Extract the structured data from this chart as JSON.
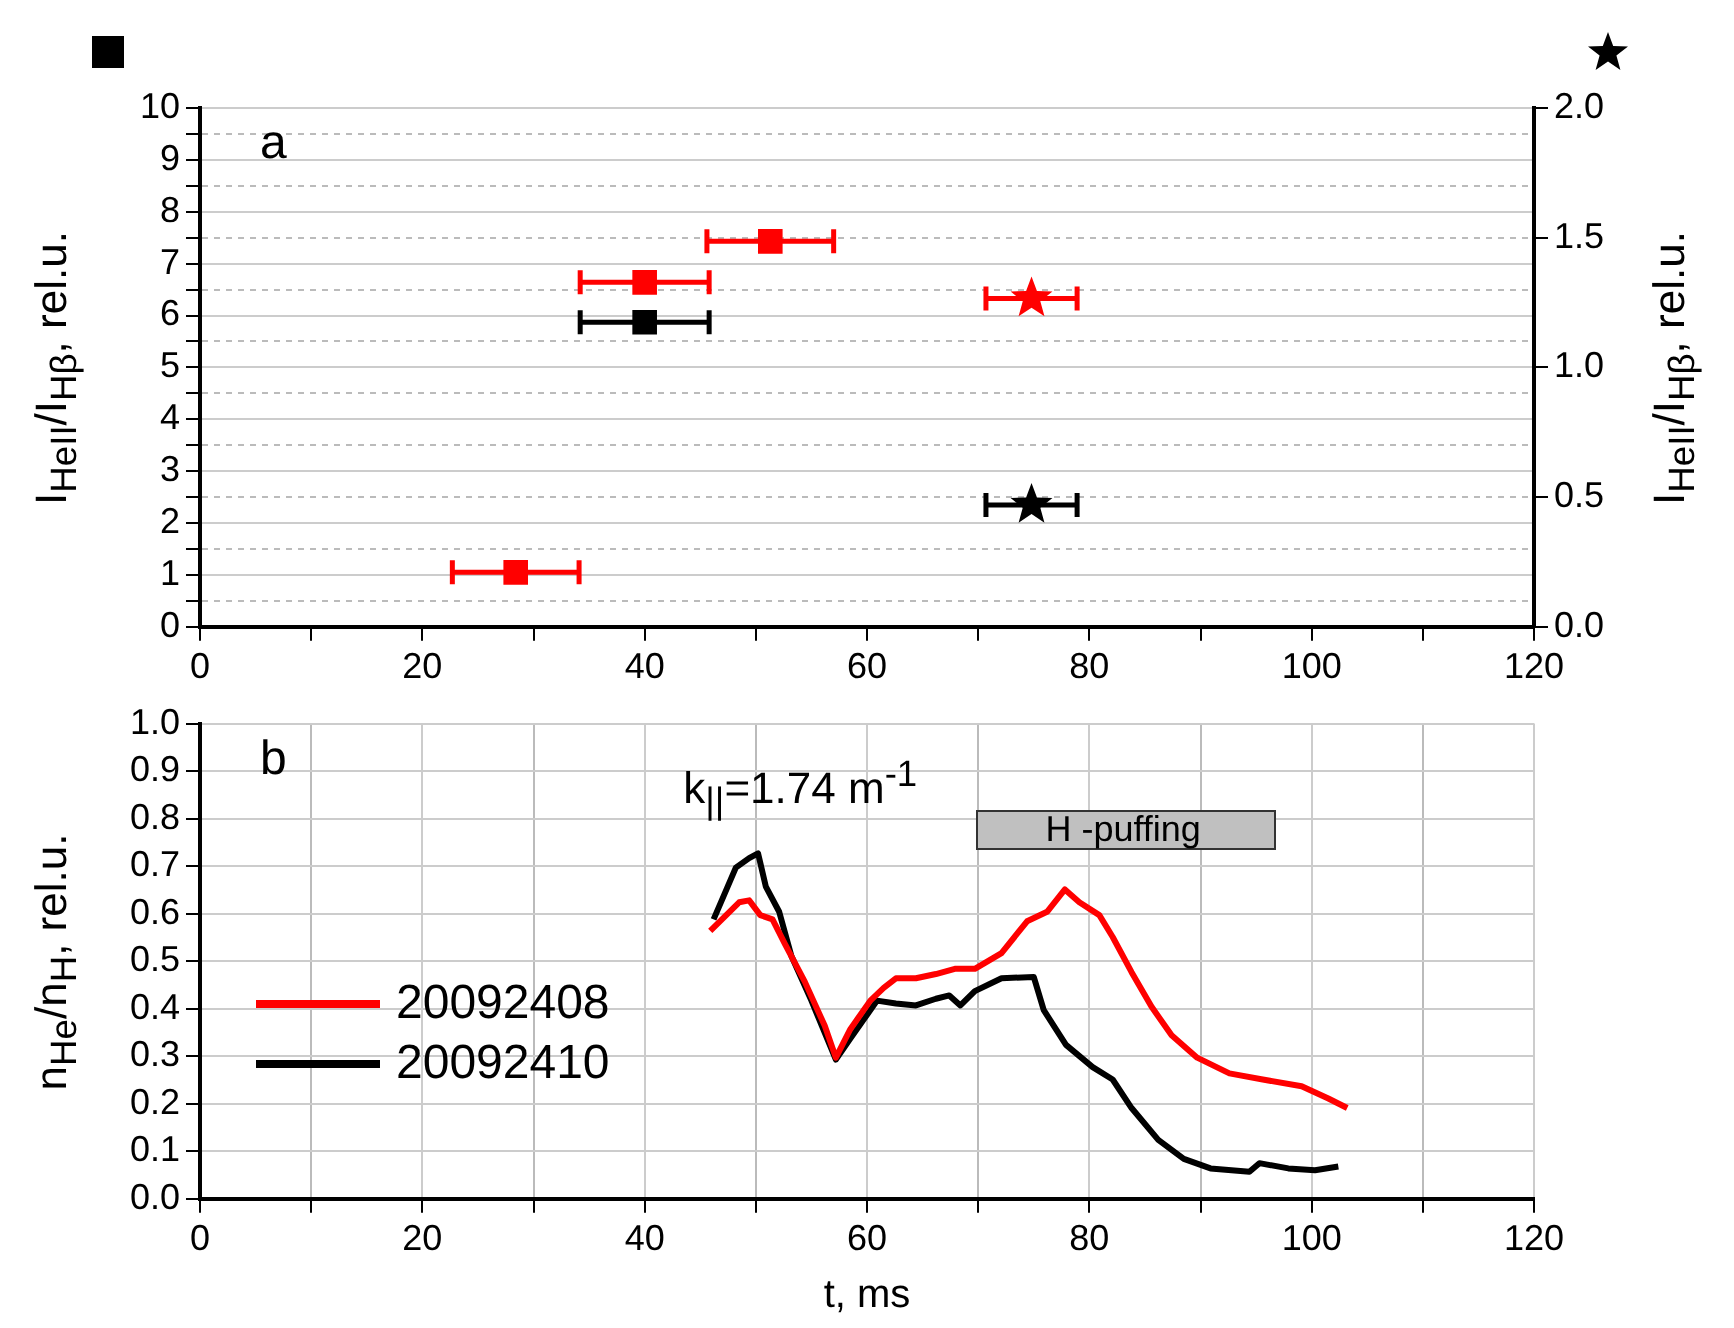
{
  "chart_data": [
    {
      "type": "scatter",
      "ylabel": "I$_{HeII}$/I$_{Hβ}$, rel.u.",
      "y2label": "I$_{HeII}$/I$_{Hβ}$, rel.u.",
      "annotations": [
        "a"
      ],
      "xlim": [
        0,
        120
      ],
      "xticks": [
        0,
        {
          "value": 10,
          "label": null
        },
        20,
        {
          "value": 30,
          "label": null
        },
        40,
        {
          "value": 50,
          "label": null
        },
        60,
        {
          "value": 70,
          "label": null
        },
        80,
        {
          "value": 90,
          "label": null
        },
        100,
        {
          "value": 110,
          "label": null
        },
        120
      ],
      "ylim": [
        0,
        10
      ],
      "yticks": [
        0,
        {
          "value": 0.5,
          "label": null
        },
        1,
        {
          "value": 1.5,
          "label": null
        },
        2,
        {
          "value": 2.5,
          "label": null
        },
        3,
        {
          "value": 3.5,
          "label": null
        },
        4,
        {
          "value": 4.5,
          "label": null
        },
        5,
        {
          "value": 5.5,
          "label": null
        },
        6,
        {
          "value": 6.5,
          "label": null
        },
        7,
        {
          "value": 7.5,
          "label": null
        },
        8,
        {
          "value": 8.5,
          "label": null
        },
        9,
        {
          "value": 9.5,
          "label": null
        },
        10
      ],
      "y2lim": [
        0,
        2
      ],
      "y2ticks": [
        {
          "value": 0,
          "label": "0.0"
        },
        {
          "value": 0.5,
          "label": "0.5"
        },
        {
          "value": 1,
          "label": "1.0"
        },
        {
          "value": 1.5,
          "label": "1.5"
        },
        {
          "value": 2,
          "label": "2.0"
        }
      ],
      "grid": "y",
      "series": [
        {
          "color": "#ff0000",
          "marker": "square",
          "x": [
            28.4,
            40,
            51.3
          ],
          "values": [
            1.05,
            6.64,
            7.43
          ],
          "xerrors": [
            5.7,
            5.8,
            5.7
          ]
        },
        {
          "color": "#000000",
          "marker": "square",
          "x": [
            40
          ],
          "values": [
            5.87
          ],
          "xerrors": [
            5.8
          ]
        },
        {
          "color": "#ff0000",
          "marker": "star",
          "axis": "y2",
          "x": [
            74.8
          ],
          "values": [
            1.266
          ],
          "xerrors": [
            4.1
          ]
        },
        {
          "color": "#000000",
          "marker": "star",
          "axis": "y2",
          "x": [
            74.8
          ],
          "values": [
            0.47
          ],
          "xerrors": [
            4.1
          ]
        }
      ]
    },
    {
      "type": "line",
      "xlabel": "t, ms",
      "ylabel": "n$_{He}$/n$_{H}$, rel.u.",
      "annotations": [
        "b",
        "k$_{||}$=1.74 m$^{-1}$",
        "H -puffing"
      ],
      "xlim": [
        0,
        120
      ],
      "xticks": [
        0,
        {
          "value": 10,
          "label": null
        },
        20,
        {
          "value": 30,
          "label": null
        },
        40,
        {
          "value": 50,
          "label": null
        },
        60,
        {
          "value": 70,
          "label": null
        },
        80,
        {
          "value": 90,
          "label": null
        },
        100,
        {
          "value": 110,
          "label": null
        },
        120
      ],
      "ylim": [
        0,
        1
      ],
      "yticks": [
        {
          "value": 0,
          "label": "0.0"
        },
        {
          "value": 0.1,
          "label": "0.1"
        },
        {
          "value": 0.2,
          "label": "0.2"
        },
        {
          "value": 0.3,
          "label": "0.3"
        },
        {
          "value": 0.4,
          "label": "0.4"
        },
        {
          "value": 0.5,
          "label": "0.5"
        },
        {
          "value": 0.6,
          "label": "0.6"
        },
        {
          "value": 0.7,
          "label": "0.7"
        },
        {
          "value": 0.8,
          "label": "0.8"
        },
        {
          "value": 0.9,
          "label": "0.9"
        },
        {
          "value": 1,
          "label": "1.0"
        }
      ],
      "grid": true,
      "legend": "bottom left",
      "series": [
        {
          "name": "20092408",
          "color": "#ff0000",
          "x": [
            45.9,
            48.5,
            49.4,
            50.4,
            51.5,
            52.6,
            54.4,
            56.2,
            57.2,
            58.5,
            60.3,
            61.5,
            62.6,
            64.4,
            66.2,
            67.9,
            69.7,
            72.1,
            74.4,
            76.2,
            77.8,
            79.1,
            80.9,
            82.1,
            83.8,
            85.6,
            87.4,
            89.7,
            92.6,
            95.6,
            99.1,
            101.5,
            103.2
          ],
          "values": [
            0.564,
            0.624,
            0.628,
            0.597,
            0.588,
            0.537,
            0.457,
            0.364,
            0.297,
            0.357,
            0.417,
            0.444,
            0.464,
            0.464,
            0.473,
            0.484,
            0.484,
            0.517,
            0.584,
            0.604,
            0.651,
            0.624,
            0.597,
            0.551,
            0.477,
            0.404,
            0.344,
            0.297,
            0.264,
            0.251,
            0.237,
            0.211,
            0.191
          ]
        },
        {
          "name": "20092410",
          "color": "#000000",
          "x": [
            46.2,
            47.1,
            48.2,
            49.4,
            50.2,
            50.9,
            52.1,
            53.2,
            55.0,
            57.2,
            58.5,
            59.7,
            60.9,
            62.6,
            64.4,
            66.2,
            67.4,
            68.4,
            69.7,
            72.1,
            75.0,
            75.9,
            77.9,
            80.3,
            82.1,
            83.8,
            86.2,
            88.5,
            90.9,
            94.4,
            95.3,
            97.9,
            100.3,
            102.4
          ],
          "values": [
            0.588,
            0.637,
            0.697,
            0.717,
            0.727,
            0.657,
            0.604,
            0.511,
            0.417,
            0.293,
            0.337,
            0.377,
            0.417,
            0.411,
            0.407,
            0.421,
            0.428,
            0.407,
            0.437,
            0.464,
            0.467,
            0.397,
            0.324,
            0.277,
            0.251,
            0.191,
            0.124,
            0.084,
            0.064,
            0.057,
            0.075,
            0.064,
            0.06,
            0.068
          ]
        }
      ]
    }
  ]
}
